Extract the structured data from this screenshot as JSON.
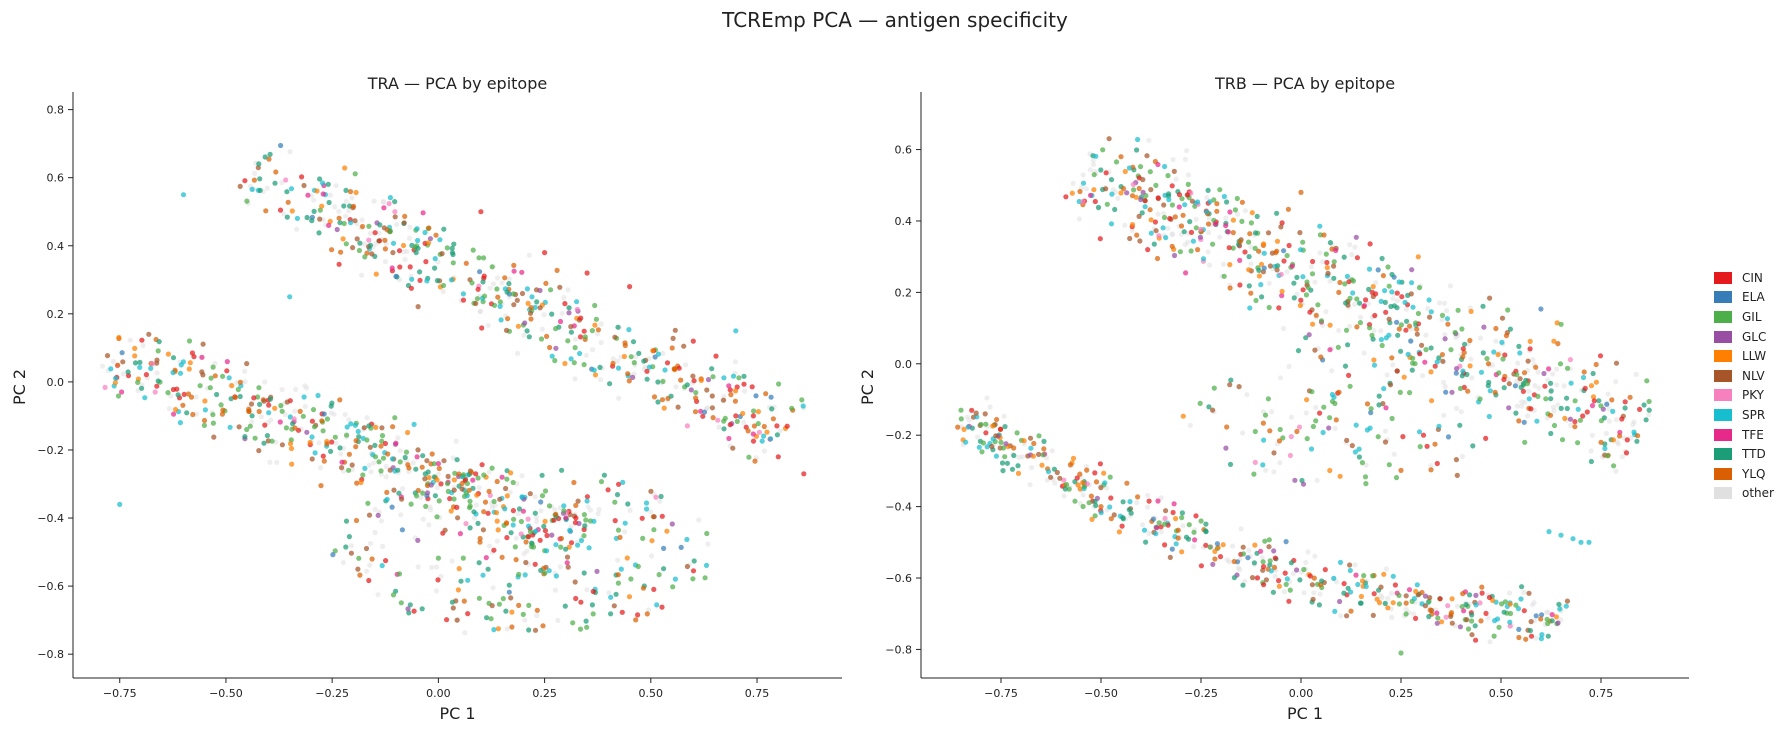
{
  "figure": {
    "suptitle": "TCREmp PCA — antigen specificity"
  },
  "colors": {
    "CIN": "#e41a1c",
    "ELA": "#377eb8",
    "GIL": "#4daf4a",
    "GLC": "#984ea3",
    "LLW": "#ff7f00",
    "NLV": "#a65628",
    "PKY": "#f781bf",
    "SPR": "#17becf",
    "TFE": "#e7298a",
    "TTD": "#1b9e77",
    "YLQ": "#d95f02",
    "other": "#e0e0e0"
  },
  "legend": [
    "CIN",
    "ELA",
    "GIL",
    "GLC",
    "LLW",
    "NLV",
    "PKY",
    "SPR",
    "TFE",
    "TTD",
    "YLQ",
    "other"
  ],
  "chart_data": [
    {
      "type": "scatter",
      "title": "TRA — PCA by epitope",
      "xlabel": "PC 1",
      "ylabel": "PC 2",
      "xlim": [
        -0.86,
        0.95
      ],
      "ylim": [
        -0.87,
        0.84
      ],
      "xticks": [
        -0.75,
        -0.5,
        -0.25,
        0.0,
        0.25,
        0.5,
        0.75
      ],
      "xtick_labels": [
        "−0.75",
        "−0.50",
        "−0.25",
        "0.00",
        "0.25",
        "0.50",
        "0.75"
      ],
      "yticks": [
        -0.8,
        -0.6,
        -0.4,
        -0.2,
        0.0,
        0.2,
        0.4,
        0.6,
        0.8
      ],
      "ytick_labels": [
        "−0.8",
        "−0.6",
        "−0.4",
        "−0.2",
        "0.0",
        "0.2",
        "0.4",
        "0.6",
        "0.8"
      ],
      "grid": false,
      "clusters": [
        {
          "note": "upper band",
          "x0": -0.45,
          "y0": 0.62,
          "x1": 0.82,
          "y1": -0.15,
          "width": 0.17,
          "n": 520
        },
        {
          "note": "lower band",
          "x0": -0.78,
          "y0": 0.08,
          "x1": 0.35,
          "y1": -0.45,
          "width": 0.16,
          "n": 520
        },
        {
          "note": "scatter cloud",
          "cx": 0.2,
          "cy": -0.5,
          "rx": 0.45,
          "ry": 0.25,
          "n": 280
        }
      ],
      "series": [
        {
          "name": "CIN",
          "x": [
            0.1,
            0.25,
            0.35,
            0.45,
            0.6,
            0.7,
            0.8,
            0.86
          ],
          "y": [
            0.5,
            0.38,
            0.32,
            0.28,
            0.12,
            -0.1,
            -0.22,
            -0.27
          ]
        },
        {
          "name": "TFE",
          "x": [
            -0.1,
            -0.05,
            0.0,
            0.15,
            0.2,
            0.3
          ],
          "y": [
            -0.18,
            -0.22,
            -0.24,
            -0.28,
            -0.38,
            -0.4
          ]
        },
        {
          "name": "SPR",
          "x": [
            -0.75,
            -0.6,
            -0.35,
            -0.05,
            0.35,
            0.7
          ],
          "y": [
            -0.36,
            0.55,
            0.25,
            0.45,
            -0.35,
            0.15
          ]
        }
      ]
    },
    {
      "type": "scatter",
      "title": "TRB — PCA by epitope",
      "xlabel": "PC 1",
      "ylabel": "PC 2",
      "xlim": [
        -0.95,
        0.97
      ],
      "ylim": [
        -0.88,
        0.75
      ],
      "xticks": [
        -0.75,
        -0.5,
        -0.25,
        0.0,
        0.25,
        0.5,
        0.75
      ],
      "xtick_labels": [
        "−0.75",
        "−0.50",
        "−0.25",
        "0.00",
        "0.25",
        "0.50",
        "0.75"
      ],
      "yticks": [
        -0.8,
        -0.6,
        -0.4,
        -0.2,
        0.0,
        0.2,
        0.4,
        0.6
      ],
      "ytick_labels": [
        "−0.8",
        "−0.6",
        "−0.4",
        "−0.2",
        "0.0",
        "0.2",
        "0.4",
        "0.6"
      ],
      "grid": false,
      "clusters": [
        {
          "note": "upper arc",
          "x0": -0.55,
          "y0": 0.55,
          "x1": 0.85,
          "y1": -0.2,
          "width": 0.2,
          "n": 720
        },
        {
          "note": "lower arc",
          "x0": -0.85,
          "y0": -0.15,
          "x1": 0.65,
          "y1": -0.72,
          "width": 0.1,
          "n": 520,
          "bend": 0.12
        },
        {
          "note": "sparse middle",
          "cx": 0.15,
          "cy": -0.15,
          "rx": 0.45,
          "ry": 0.2,
          "n": 160
        }
      ],
      "series": [
        {
          "name": "SPR",
          "x": [
            0.62,
            0.65,
            0.68,
            0.7,
            0.72
          ],
          "y": [
            -0.47,
            -0.48,
            -0.49,
            -0.5,
            -0.5
          ]
        },
        {
          "name": "GIL",
          "x": [
            -0.85,
            -0.8,
            -0.75,
            0.25
          ],
          "y": [
            -0.13,
            -0.17,
            -0.22,
            -0.81
          ]
        },
        {
          "name": "YLQ",
          "x": [
            -0.5,
            -0.45,
            0.0,
            0.45,
            0.75
          ],
          "y": [
            -0.4,
            0.58,
            0.48,
            -0.72,
            -0.22
          ]
        }
      ]
    }
  ]
}
